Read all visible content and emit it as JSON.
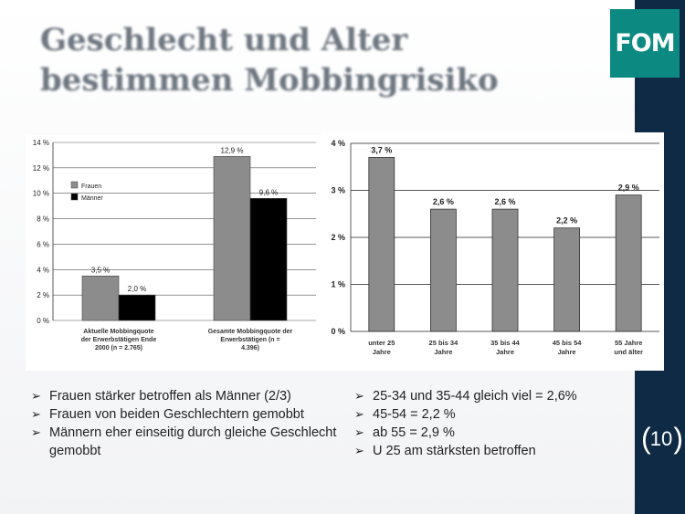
{
  "title": "Geschlecht und Alter bestimmen Mobbingrisiko",
  "logo": "FOM",
  "page_number": "10",
  "colors": {
    "sidebar": "#0f2a45",
    "logo_bg": "#0c8a82",
    "bar_gray": "#8c8c8c",
    "bar_black": "#000000"
  },
  "chart_data": [
    {
      "type": "bar",
      "categories": [
        "Aktuelle Mobbingquote der Erwerbstätigen Ende 2000 (n = 2.765)",
        "Gesamte Mobbingquote der Erwerbstätigen (n = 4.396)"
      ],
      "series": [
        {
          "name": "Frauen",
          "values": [
            3.5,
            12.9
          ],
          "labels": [
            "3,5 %",
            "12,9 %"
          ]
        },
        {
          "name": "Männer",
          "values": [
            2.0,
            9.6
          ],
          "labels": [
            "2,0 %",
            "9,6 %"
          ]
        }
      ],
      "yticks": [
        "0 %",
        "2 %",
        "4 %",
        "6 %",
        "8 %",
        "10 %",
        "12 %",
        "14 %"
      ],
      "ylim": [
        0,
        14
      ],
      "legend": "top-left"
    },
    {
      "type": "bar",
      "categories": [
        "unter 25 Jahre",
        "25 bis 34 Jahre",
        "35 bis 44 Jahre",
        "45 bis 54 Jahre",
        "55 Jahre und älter"
      ],
      "values": [
        3.7,
        2.6,
        2.6,
        2.2,
        2.9
      ],
      "labels": [
        "3,7 %",
        "2,6 %",
        "2,6 %",
        "2,2 %",
        "2,9 %"
      ],
      "yticks": [
        "0 %",
        "1 %",
        "2 %",
        "3 %",
        "4 %"
      ],
      "ylim": [
        0,
        4
      ]
    }
  ],
  "bullets_left": [
    "Frauen stärker betroffen als Männer (2/3)",
    "Frauen von beiden Geschlechtern gemobbt",
    "Männern eher einseitig durch gleiche Geschlecht gemobbt"
  ],
  "bullets_right": [
    "25-34 und 35-44 gleich viel = 2,6%",
    "45-54 = 2,2 %",
    "ab 55 = 2,9 %",
    "U 25 am stärksten betroffen"
  ]
}
